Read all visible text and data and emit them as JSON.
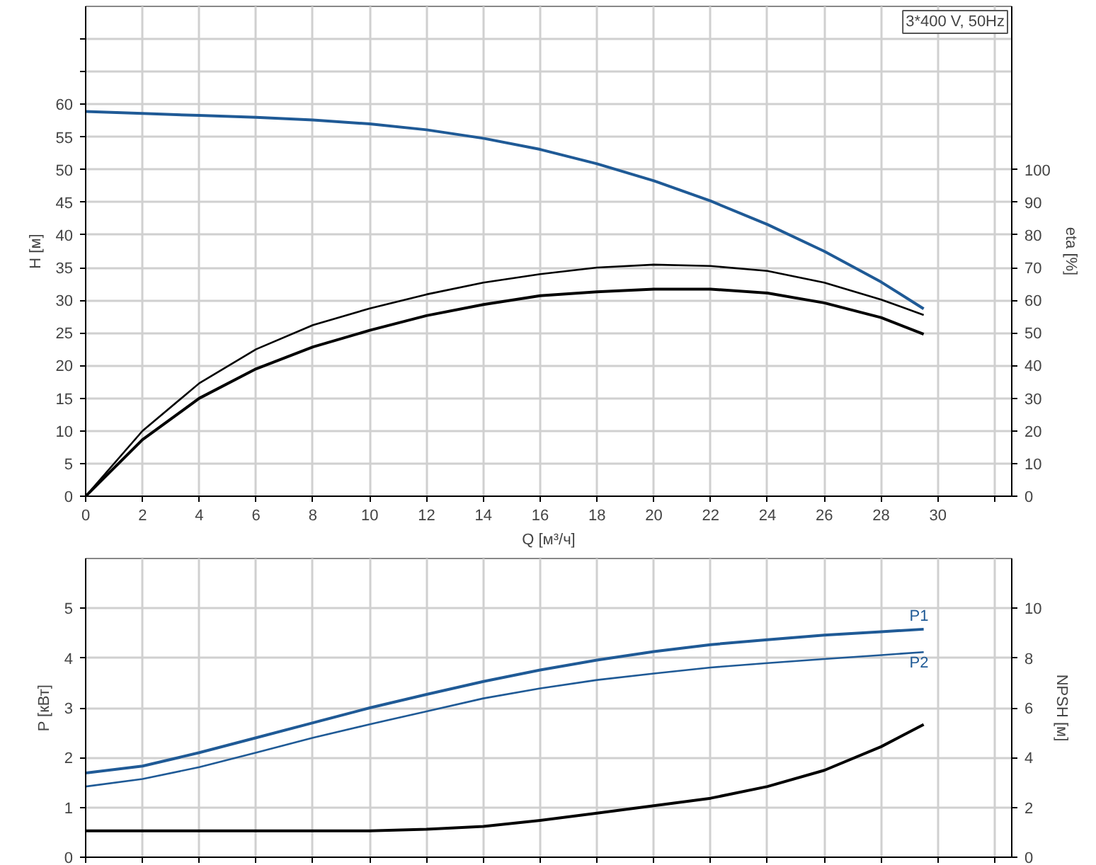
{
  "chart_data": [
    {
      "type": "line",
      "xlabel": "Q [м³/ч]",
      "ylabel": "H [м]",
      "y2label": "eta [%]",
      "annotations": [
        "3*400 V, 50Hz"
      ],
      "grid": true,
      "x": [
        0,
        2,
        4,
        6,
        8,
        10,
        12,
        14,
        16,
        18,
        20,
        22,
        24,
        26,
        28,
        29.5
      ],
      "xlim": [
        0,
        32.6
      ],
      "xticks": [
        0,
        2,
        4,
        6,
        8,
        10,
        12,
        14,
        16,
        18,
        20,
        22,
        24,
        26,
        28,
        30,
        {
          "value": 32,
          "label": null
        }
      ],
      "ylim": [
        0,
        75
      ],
      "yticks": [
        0,
        5,
        10,
        15,
        20,
        25,
        30,
        35,
        40,
        45,
        50,
        55,
        60,
        {
          "value": 65,
          "label": null
        },
        {
          "value": 70,
          "label": null
        }
      ],
      "y2lim": [
        0,
        150
      ],
      "y2ticks": [
        0,
        10,
        20,
        30,
        40,
        50,
        60,
        70,
        80,
        90,
        100
      ],
      "series": [
        {
          "color": "#1f5a96",
          "values": [
            58.9,
            58.6,
            58.3,
            58.0,
            57.6,
            57.0,
            56.1,
            54.8,
            53.1,
            50.9,
            48.3,
            45.2,
            41.6,
            37.5,
            32.8,
            28.7
          ]
        },
        {
          "color": "#000000",
          "axis": "y2",
          "values": [
            0,
            20,
            34.6,
            45,
            52.4,
            57.5,
            61.8,
            65.4,
            68,
            70,
            70.9,
            70.5,
            69,
            65.4,
            60.2,
            55.5
          ]
        },
        {
          "color": "#000000",
          "axis": "y2",
          "values": [
            0,
            17.3,
            30,
            39,
            45.7,
            50.8,
            55.3,
            58.7,
            61.4,
            62.6,
            63.4,
            63.4,
            62.2,
            59.2,
            54.7,
            49.6
          ]
        }
      ]
    },
    {
      "type": "line",
      "ylabel": "P [кВт]",
      "y2label": "NPSH [м]",
      "grid": true,
      "tick_labels": "y",
      "x": [
        0,
        2,
        4,
        6,
        8,
        10,
        12,
        14,
        16,
        18,
        20,
        22,
        24,
        26,
        28,
        29.5
      ],
      "xlim": [
        0,
        32.6
      ],
      "xticks": [
        0,
        2,
        4,
        6,
        8,
        10,
        12,
        14,
        16,
        18,
        20,
        22,
        24,
        26,
        28,
        30,
        32
      ],
      "ylim": [
        0,
        6
      ],
      "yticks": [
        0,
        1,
        2,
        3,
        4,
        5
      ],
      "y2lim": [
        0,
        12
      ],
      "y2ticks": [
        0,
        2,
        4,
        6,
        8,
        10
      ],
      "series": [
        {
          "name": "P1",
          "color": "#1f5a96",
          "values": [
            1.69,
            1.83,
            2.1,
            2.4,
            2.7,
            3.0,
            3.27,
            3.53,
            3.76,
            3.96,
            4.13,
            4.27,
            4.37,
            4.46,
            4.53,
            4.58
          ]
        },
        {
          "name": "P2",
          "color": "#1f5a96",
          "values": [
            1.42,
            1.57,
            1.81,
            2.1,
            2.4,
            2.67,
            2.93,
            3.19,
            3.39,
            3.56,
            3.69,
            3.81,
            3.9,
            3.98,
            4.06,
            4.12
          ]
        },
        {
          "color": "#000000",
          "axis": "y2",
          "values": [
            1.06,
            1.06,
            1.06,
            1.06,
            1.06,
            1.06,
            1.12,
            1.24,
            1.48,
            1.77,
            2.07,
            2.37,
            2.84,
            3.49,
            4.44,
            5.33
          ]
        }
      ]
    }
  ]
}
